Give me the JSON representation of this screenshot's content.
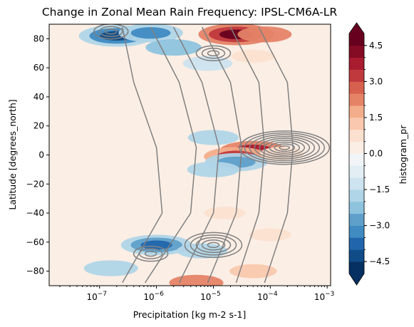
{
  "chart_data": {
    "type": "heatmap",
    "title": "Change in Zonal Mean Rain Frequency: IPSL-CM6A-LR",
    "xlabel": "Precipitation [kg m-2 s-1]",
    "ylabel": "Latitude [degrees_north]",
    "x_scale": "log",
    "xlim": [
      1.3e-08,
      0.00115
    ],
    "ylim": [
      -90,
      90
    ],
    "x_ticks": [
      {
        "value": 1e-07,
        "base": "10",
        "exp": "−7"
      },
      {
        "value": 1e-06,
        "base": "10",
        "exp": "−6"
      },
      {
        "value": 1e-05,
        "base": "10",
        "exp": "−5"
      },
      {
        "value": 0.0001,
        "base": "10",
        "exp": "−4"
      },
      {
        "value": 0.001,
        "base": "10",
        "exp": "−3"
      }
    ],
    "y_ticks": [
      "80",
      "60",
      "40",
      "20",
      "0",
      "−20",
      "−40",
      "−60",
      "−80"
    ],
    "colorbar": {
      "label": "histogram_pr",
      "range": [
        -5.0,
        5.0
      ],
      "step": 0.5,
      "extend": "both",
      "colormap": "RdBu_r",
      "tick_labels": [
        "4.5",
        "3.0",
        "1.5",
        "0.0",
        "−1.5",
        "−3.0",
        "−4.5"
      ],
      "tick_values": [
        4.5,
        3.0,
        1.5,
        0.0,
        -1.5,
        -3.0,
        -4.5
      ],
      "colors": [
        "#053061",
        "#104c88",
        "#2166ac",
        "#3f8bc2",
        "#5fa0ca",
        "#8ec3de",
        "#b0d5e8",
        "#cde3ef",
        "#e3eef4",
        "#f1f5f7",
        "#fbeee5",
        "#fce0cf",
        "#f9c8ae",
        "#f4ad8a",
        "#e58367",
        "#d6604d",
        "#c0393d",
        "#a91b2f",
        "#850a23",
        "#67001f"
      ]
    },
    "anomaly_regions": [
      {
        "lat": 82,
        "log10_precip": -6.7,
        "value": -4.5
      },
      {
        "lat": 84,
        "log10_precip": -6.1,
        "value": -3.2
      },
      {
        "lat": 83,
        "log10_precip": -4.6,
        "value": 4.5
      },
      {
        "lat": 83,
        "log10_precip": -4.1,
        "value": 2.0
      },
      {
        "lat": 74,
        "log10_precip": -5.7,
        "value": -2.2
      },
      {
        "lat": 63,
        "log10_precip": -5.1,
        "value": -1.5
      },
      {
        "lat": 68,
        "log10_precip": -4.3,
        "value": 0.7
      },
      {
        "lat": 3,
        "log10_precip": -4.3,
        "value": 3.5
      },
      {
        "lat": -1,
        "log10_precip": -4.6,
        "value": 3.2
      },
      {
        "lat": -5,
        "log10_precip": -4.6,
        "value": -3.0
      },
      {
        "lat": 12,
        "log10_precip": -5.0,
        "value": -1.6
      },
      {
        "lat": -10,
        "log10_precip": -5.0,
        "value": -1.8
      },
      {
        "lat": 1,
        "log10_precip": -3.8,
        "value": 0.8
      },
      {
        "lat": -62,
        "log10_precip": -6.0,
        "value": -4.0
      },
      {
        "lat": -66,
        "log10_precip": -5.2,
        "value": -1.6
      },
      {
        "lat": -78,
        "log10_precip": -6.8,
        "value": -2.0
      },
      {
        "lat": -88,
        "log10_precip": -5.3,
        "value": 2.0
      },
      {
        "lat": -80,
        "log10_precip": -4.3,
        "value": 1.2
      },
      {
        "lat": -40,
        "log10_precip": -4.8,
        "value": 0.5
      },
      {
        "lat": -55,
        "log10_precip": -4.0,
        "value": 0.6
      }
    ],
    "contour_centers": [
      {
        "lat": 5,
        "log10_precip": -3.75
      },
      {
        "lat": -62,
        "log10_precip": -5.0
      },
      {
        "lat": 70,
        "log10_precip": -5.0
      },
      {
        "lat": -68,
        "log10_precip": -6.1
      },
      {
        "lat": 85,
        "log10_precip": -6.8
      }
    ]
  }
}
